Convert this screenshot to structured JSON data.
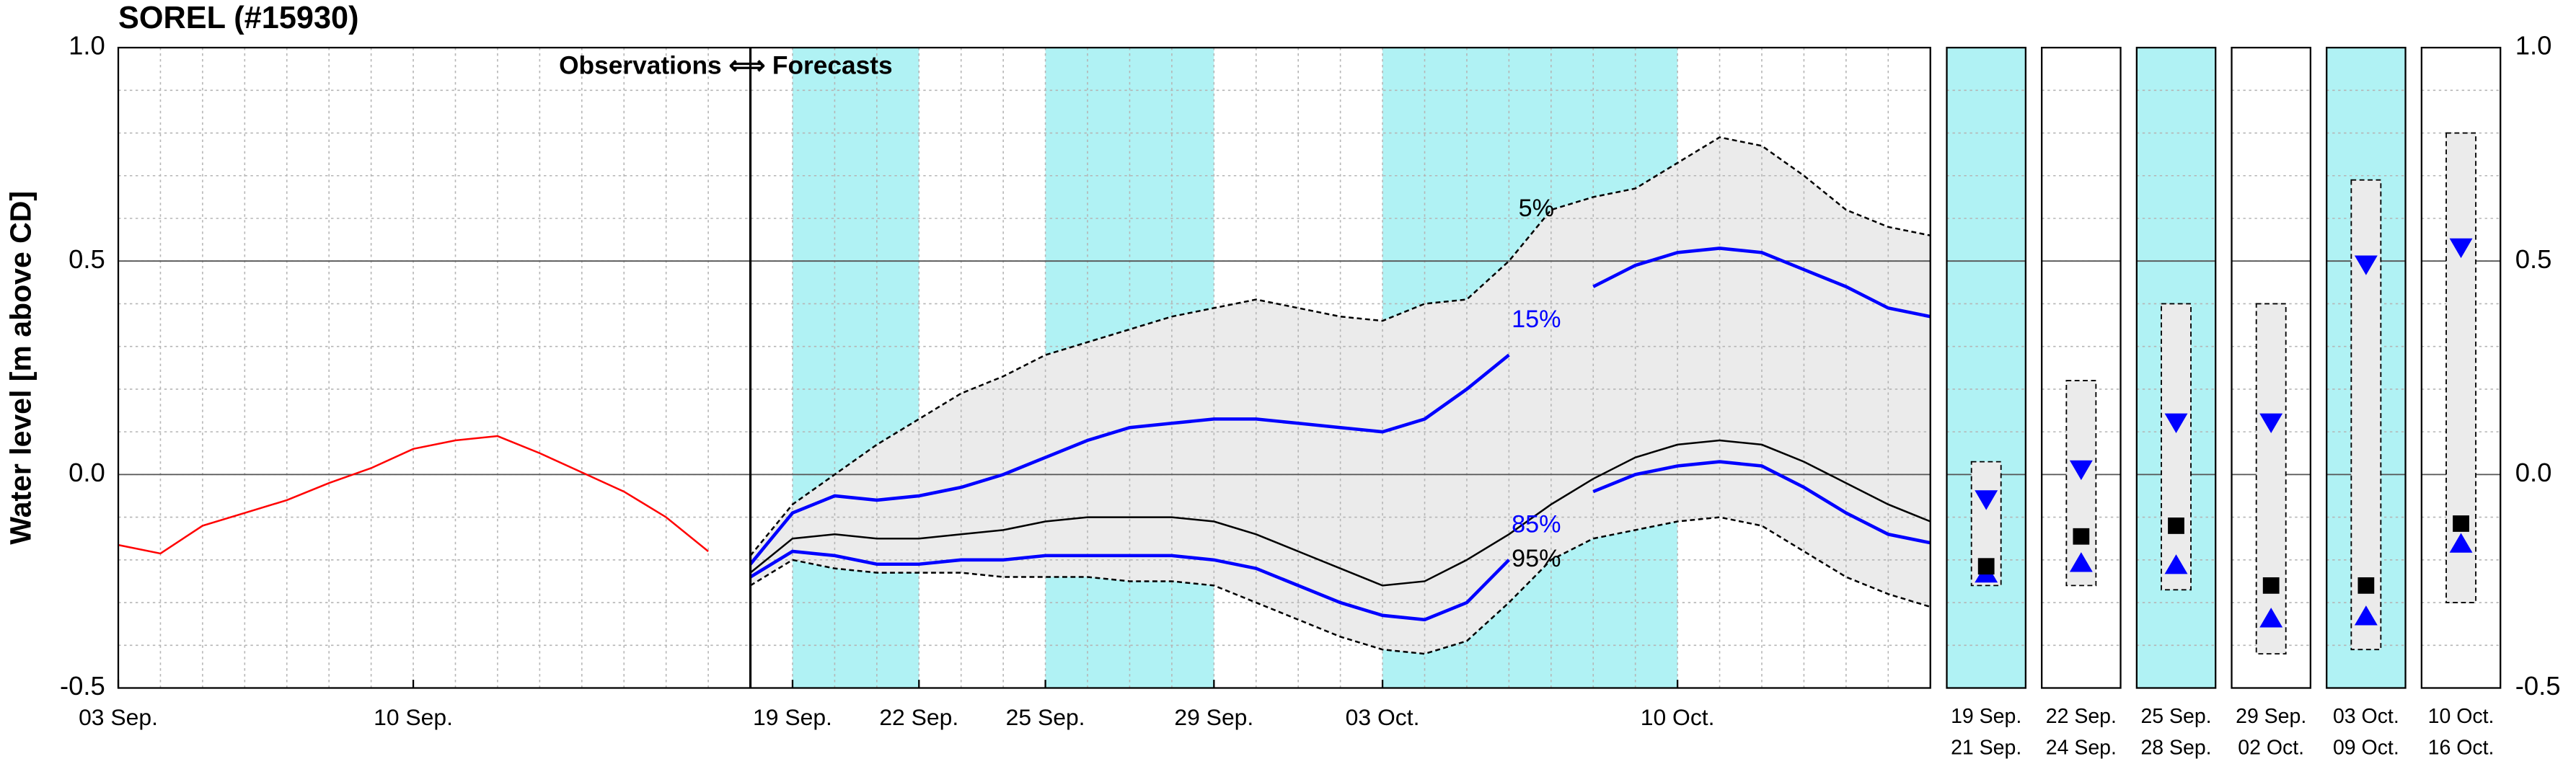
{
  "chart_data": [
    {
      "type": "line",
      "title": "SOREL (#15930)",
      "ylabel": "Water level [m above CD]",
      "annotation": "Observations ⟺ Forecasts",
      "xlim": [
        0,
        43
      ],
      "xticks": [
        {
          "value": 0,
          "label": "03 Sep."
        },
        {
          "value": 7,
          "label": "10 Sep."
        },
        {
          "value": 16,
          "label": "19 Sep."
        },
        {
          "value": 19,
          "label": "22 Sep."
        },
        {
          "value": 22,
          "label": "25 Sep."
        },
        {
          "value": 26,
          "label": "29 Sep."
        },
        {
          "value": 30,
          "label": "03 Oct."
        },
        {
          "value": 37,
          "label": "10 Oct."
        }
      ],
      "ylim": [
        -0.5,
        1
      ],
      "yticks": [
        -0.5,
        {
          "value": 0,
          "label": "0.0"
        },
        0.5,
        {
          "value": 1,
          "label": "1.0"
        }
      ],
      "grid": true,
      "minor_grid": {
        "x": 1,
        "y": 0.1
      },
      "shaded": [
        [
          16,
          19
        ],
        [
          22,
          26
        ],
        [
          30,
          37
        ]
      ],
      "shade_color": "#b0f2f4",
      "fill_between": [
        "5%",
        "95%"
      ],
      "fill_color": "#ebebeb",
      "series": [
        {
          "color": "#ff0000",
          "x": [
            0,
            1,
            2,
            3,
            4,
            5,
            6,
            7,
            8,
            9,
            10,
            11,
            12,
            13,
            14
          ],
          "values": [
            -0.165,
            -0.185,
            -0.12,
            -0.09,
            -0.06,
            -0.02,
            0.015,
            0.06,
            0.08,
            0.09,
            0.05,
            0.005,
            -0.04,
            -0.1,
            -0.18
          ]
        },
        {
          "name": "5%",
          "color": "#000000",
          "dash": true,
          "x": [
            15,
            16,
            17,
            18,
            19,
            20,
            21,
            22,
            23,
            24,
            25,
            26,
            27,
            28,
            29,
            30,
            31,
            32,
            33,
            34,
            35,
            36,
            37,
            38,
            39,
            40,
            41,
            42,
            43
          ],
          "values": [
            -0.19,
            -0.07,
            0.0,
            0.07,
            0.13,
            0.19,
            0.23,
            0.28,
            0.31,
            0.34,
            0.37,
            0.39,
            0.41,
            0.39,
            0.37,
            0.36,
            0.4,
            0.41,
            0.5,
            0.62,
            0.65,
            0.67,
            0.73,
            0.79,
            0.77,
            0.7,
            0.62,
            0.58,
            0.56
          ]
        },
        {
          "name": "15%",
          "color": "#0000ff",
          "x": [
            15,
            16,
            17,
            18,
            19,
            20,
            21,
            22,
            23,
            24,
            25,
            26,
            27,
            28,
            29,
            30,
            31,
            32,
            33,
            34,
            35,
            36,
            37,
            38,
            39,
            40,
            41,
            42,
            43
          ],
          "values": [
            -0.21,
            -0.09,
            -0.05,
            -0.06,
            -0.05,
            -0.03,
            0.0,
            0.04,
            0.08,
            0.11,
            0.12,
            0.13,
            0.13,
            0.12,
            0.11,
            0.1,
            0.13,
            0.2,
            0.28,
            null,
            0.44,
            0.49,
            0.52,
            0.53,
            0.52,
            0.48,
            0.44,
            0.39,
            0.37
          ]
        },
        {
          "color": "#000000",
          "x": [
            15,
            16,
            17,
            18,
            19,
            20,
            21,
            22,
            23,
            24,
            25,
            26,
            27,
            28,
            29,
            30,
            31,
            32,
            33,
            34,
            35,
            36,
            37,
            38,
            39,
            40,
            41,
            42,
            43
          ],
          "values": [
            -0.23,
            -0.15,
            -0.14,
            -0.15,
            -0.15,
            -0.14,
            -0.13,
            -0.11,
            -0.1,
            -0.1,
            -0.1,
            -0.11,
            -0.14,
            -0.18,
            -0.22,
            -0.26,
            -0.25,
            -0.2,
            -0.14,
            -0.07,
            -0.01,
            0.04,
            0.07,
            0.08,
            0.07,
            0.03,
            -0.02,
            -0.07,
            -0.11
          ]
        },
        {
          "name": "85%",
          "color": "#0000ff",
          "x": [
            15,
            16,
            17,
            18,
            19,
            20,
            21,
            22,
            23,
            24,
            25,
            26,
            27,
            28,
            29,
            30,
            31,
            32,
            33,
            34,
            35,
            36,
            37,
            38,
            39,
            40,
            41,
            42,
            43
          ],
          "values": [
            -0.24,
            -0.18,
            -0.19,
            -0.21,
            -0.21,
            -0.2,
            -0.2,
            -0.19,
            -0.19,
            -0.19,
            -0.19,
            -0.2,
            -0.22,
            -0.26,
            -0.3,
            -0.33,
            -0.34,
            -0.3,
            -0.2,
            null,
            -0.04,
            0.0,
            0.02,
            0.03,
            0.02,
            -0.03,
            -0.09,
            -0.14,
            -0.16
          ]
        },
        {
          "name": "95%",
          "color": "#000000",
          "dash": true,
          "x": [
            15,
            16,
            17,
            18,
            19,
            20,
            21,
            22,
            23,
            24,
            25,
            26,
            27,
            28,
            29,
            30,
            31,
            32,
            33,
            34,
            35,
            36,
            37,
            38,
            39,
            40,
            41,
            42,
            43
          ],
          "values": [
            -0.26,
            -0.2,
            -0.22,
            -0.23,
            -0.23,
            -0.23,
            -0.24,
            -0.24,
            -0.24,
            -0.25,
            -0.25,
            -0.26,
            -0.3,
            -0.34,
            -0.38,
            -0.41,
            -0.42,
            -0.39,
            -0.3,
            -0.2,
            -0.15,
            -0.13,
            -0.11,
            -0.1,
            -0.12,
            -0.18,
            -0.24,
            -0.28,
            -0.31
          ]
        }
      ]
    },
    {
      "type": "range",
      "categories": [
        {
          "from": "19 Sep.",
          "to": "21 Sep."
        },
        {
          "from": "22 Sep.",
          "to": "24 Sep."
        },
        {
          "from": "25 Sep.",
          "to": "28 Sep."
        },
        {
          "from": "29 Sep.",
          "to": "02 Oct."
        },
        {
          "from": "03 Oct.",
          "to": "09 Oct."
        },
        {
          "from": "10 Oct.",
          "to": "16 Oct."
        }
      ],
      "shaded": [
        true,
        false,
        true,
        false,
        true,
        false
      ],
      "shade_color": "#b0f2f4",
      "ylim": [
        -0.5,
        1
      ],
      "yticks": [
        -0.5,
        {
          "value": 0,
          "label": "0.0"
        },
        0.5,
        {
          "value": 1,
          "label": "1.0"
        }
      ],
      "minor_grid": {
        "y": 0.1
      },
      "boxes": {
        "high": [
          0.03,
          0.22,
          0.4,
          0.4,
          0.69,
          0.8
        ],
        "low": [
          -0.26,
          -0.26,
          -0.27,
          -0.42,
          -0.41,
          -0.3
        ],
        "color": "#ebebeb"
      },
      "series": [
        {
          "name": "15%",
          "marker": "triangle-down",
          "color": "#0000ff",
          "values": [
            -0.06,
            0.01,
            0.12,
            0.12,
            0.49,
            0.53
          ]
        },
        {
          "name": "85%",
          "marker": "triangle-up",
          "color": "#0000ff",
          "values": [
            -0.23,
            -0.205,
            -0.21,
            -0.335,
            -0.33,
            -0.16
          ]
        },
        {
          "marker": "square",
          "color": "#000000",
          "values": [
            -0.215,
            -0.145,
            -0.12,
            -0.26,
            -0.26,
            -0.115
          ]
        }
      ]
    }
  ]
}
